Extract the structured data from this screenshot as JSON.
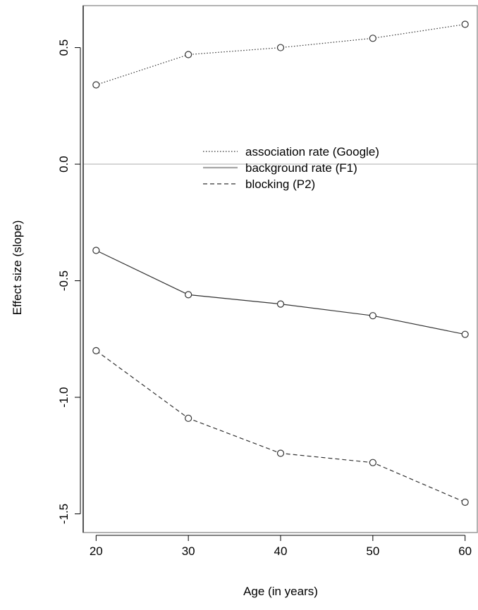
{
  "chart_data": {
    "type": "line",
    "title": "",
    "xlabel": "Age (in years)",
    "ylabel": "Effect size (slope)",
    "x": [
      20,
      30,
      40,
      50,
      60
    ],
    "x_ticks": [
      20,
      30,
      40,
      50,
      60
    ],
    "y_ticks": [
      -1.5,
      -1.0,
      -0.5,
      0.0,
      0.5
    ],
    "y_tick_labels": [
      "-1.5",
      "-1.0",
      "-0.5",
      "0.0",
      "0.5"
    ],
    "xlim": [
      18.6,
      61.4
    ],
    "ylim": [
      -1.58,
      0.68
    ],
    "grid": false,
    "reference_line": {
      "y": 0.0,
      "color": "#c8c8c8"
    },
    "legend_position": "center-right",
    "series": [
      {
        "name": "association rate (Google)",
        "values": [
          0.34,
          0.47,
          0.5,
          0.54,
          0.6
        ],
        "line_style": "dotted",
        "legend_color": "#333333",
        "marker": "open-circle"
      },
      {
        "name": "background rate (F1)",
        "values": [
          -0.37,
          -0.56,
          -0.6,
          -0.65,
          -0.73
        ],
        "line_style": "solid",
        "legend_color": "#a6a6a6",
        "marker": "open-circle"
      },
      {
        "name": "blocking (P2)",
        "values": [
          -0.8,
          -1.09,
          -1.24,
          -1.28,
          -1.45
        ],
        "line_style": "dashed",
        "legend_color": "#333333",
        "marker": "open-circle"
      }
    ]
  }
}
